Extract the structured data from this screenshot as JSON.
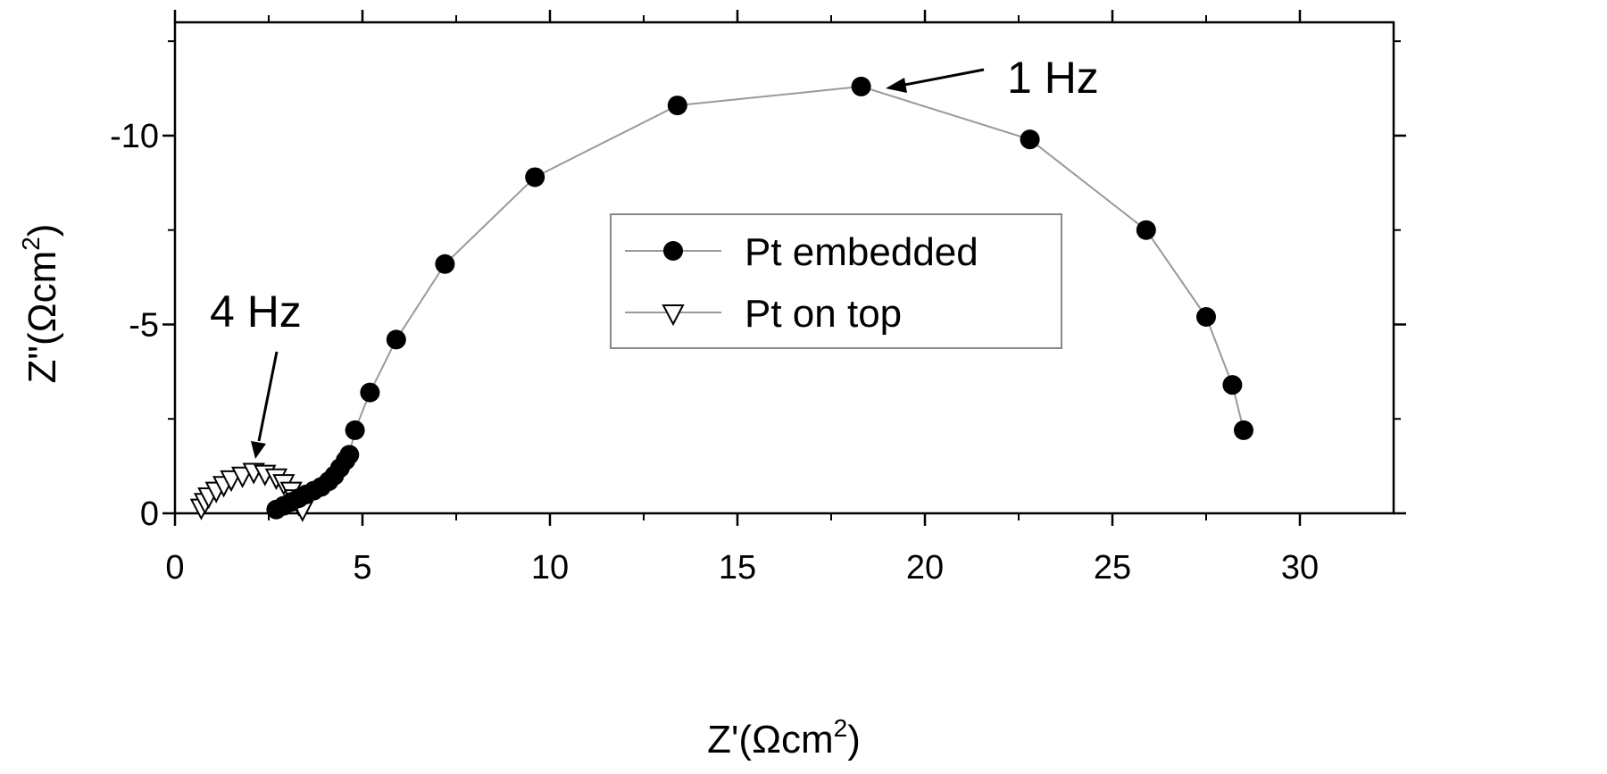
{
  "chart_data": {
    "type": "scatter",
    "xlabel": "Z'(Ωcm",
    "xlabel_sup": "2",
    "xlabel_end": ")",
    "ylabel": "Z\"(Ωcm",
    "ylabel_sup": "2",
    "ylabel_end": ")",
    "xlim": [
      0,
      32.5
    ],
    "ylim": [
      0,
      -13
    ],
    "x_ticks": [
      0,
      5,
      10,
      15,
      20,
      25,
      30
    ],
    "x_tick_labels": [
      "0",
      "5",
      "10",
      "15",
      "20",
      "25",
      "30"
    ],
    "y_ticks": [
      0,
      -5,
      -10
    ],
    "y_tick_labels": [
      "0",
      "-5",
      "-10"
    ],
    "grid": false,
    "legend_position": "center",
    "series": [
      {
        "name": "Pt embedded",
        "marker": "filled-circle",
        "line_color": "#999999",
        "points": [
          [
            2.7,
            -0.1
          ],
          [
            2.9,
            -0.2
          ],
          [
            3.1,
            -0.3
          ],
          [
            3.3,
            -0.4
          ],
          [
            3.5,
            -0.5
          ],
          [
            3.7,
            -0.6
          ],
          [
            3.9,
            -0.7
          ],
          [
            4.1,
            -0.85
          ],
          [
            4.25,
            -1.0
          ],
          [
            4.4,
            -1.2
          ],
          [
            4.55,
            -1.4
          ],
          [
            4.65,
            -1.55
          ],
          [
            4.8,
            -2.2
          ],
          [
            5.2,
            -3.2
          ],
          [
            5.9,
            -4.6
          ],
          [
            7.2,
            -6.6
          ],
          [
            9.6,
            -8.9
          ],
          [
            13.4,
            -10.8
          ],
          [
            18.3,
            -11.3
          ],
          [
            22.8,
            -9.9
          ],
          [
            25.9,
            -7.5
          ],
          [
            27.5,
            -5.2
          ],
          [
            28.2,
            -3.4
          ],
          [
            28.5,
            -2.2
          ]
        ]
      },
      {
        "name": "Pt on top",
        "marker": "open-triangle-down",
        "line_color": "#999999",
        "points": [
          [
            0.7,
            -0.15
          ],
          [
            0.8,
            -0.3
          ],
          [
            0.9,
            -0.45
          ],
          [
            1.1,
            -0.6
          ],
          [
            1.3,
            -0.75
          ],
          [
            1.5,
            -0.9
          ],
          [
            1.8,
            -1.0
          ],
          [
            2.1,
            -1.1
          ],
          [
            2.4,
            -1.05
          ],
          [
            2.7,
            -0.95
          ],
          [
            2.9,
            -0.8
          ],
          [
            3.1,
            -0.6
          ],
          [
            3.2,
            -0.4
          ],
          [
            3.3,
            -0.25
          ],
          [
            3.4,
            -0.1
          ]
        ]
      }
    ],
    "annotations": [
      {
        "label": "1 Hz",
        "target": [
          18.7,
          -11.3
        ]
      },
      {
        "label": "4 Hz",
        "target": [
          2.15,
          -1.3
        ]
      }
    ]
  }
}
